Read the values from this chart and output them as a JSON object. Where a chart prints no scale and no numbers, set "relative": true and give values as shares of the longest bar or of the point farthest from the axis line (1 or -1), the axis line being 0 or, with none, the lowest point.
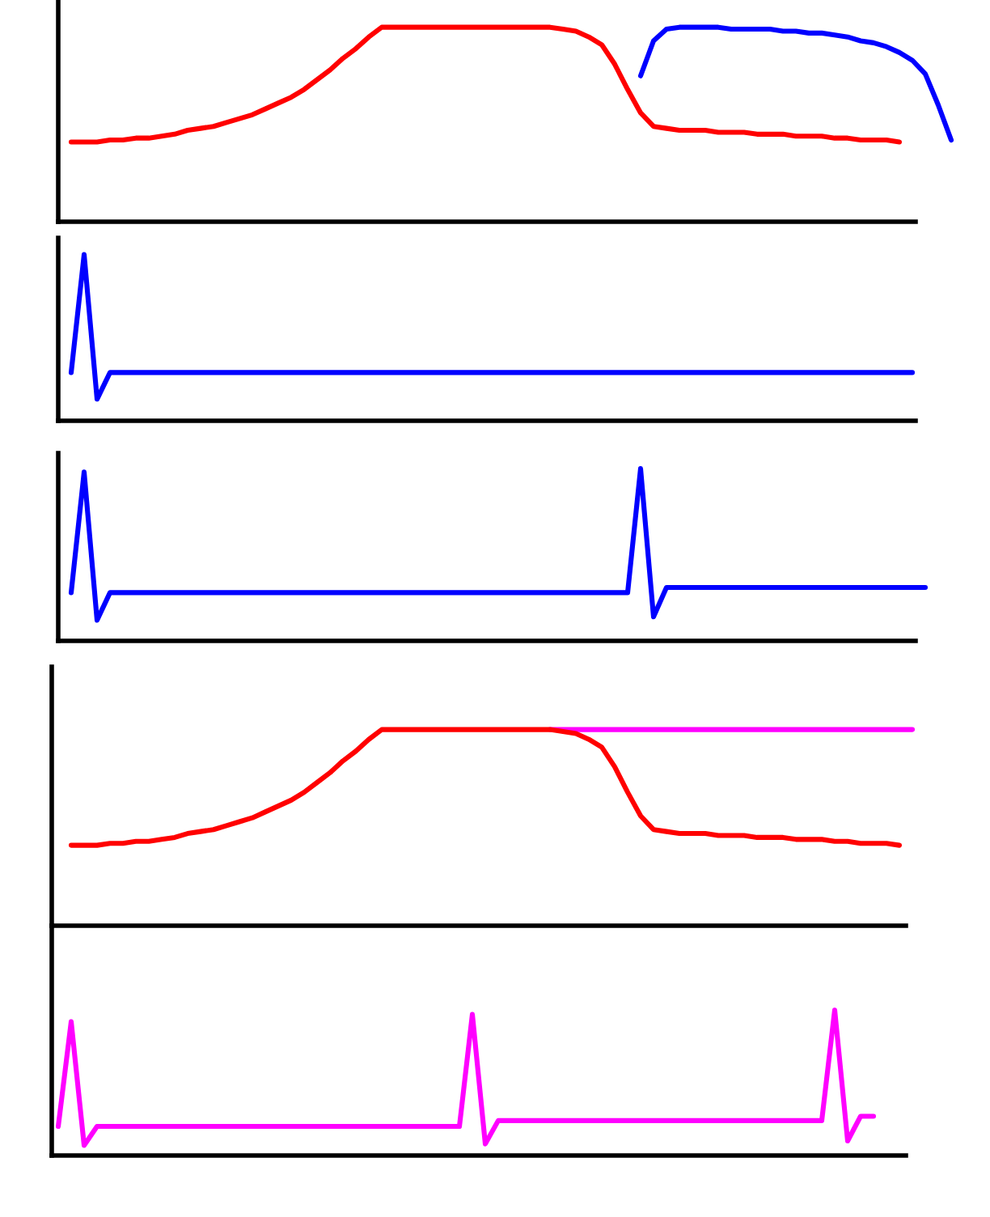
{
  "chart_data": [
    {
      "type": "line",
      "relative": true,
      "categories": [
        null,
        null,
        null,
        null,
        null,
        null,
        null,
        null,
        null,
        null,
        null,
        null,
        null,
        null,
        null,
        null,
        null,
        null,
        null,
        null,
        null,
        null,
        null,
        null,
        null,
        null,
        null,
        null,
        null,
        null,
        null,
        null,
        null,
        null,
        null,
        null,
        null,
        null,
        null,
        null,
        null,
        null,
        null,
        null,
        null,
        null,
        null,
        null,
        null,
        null,
        null,
        null,
        null,
        null,
        null,
        null,
        null,
        null,
        null,
        null,
        null,
        null,
        null,
        null,
        null,
        null,
        null,
        null,
        null,
        null
      ],
      "series": [
        {
          "color": "#ff0000",
          "values": [
            null,
            0.41,
            0.41,
            0.41,
            0.42,
            0.42,
            0.43,
            0.43,
            0.44,
            0.45,
            0.47,
            0.48,
            0.49,
            0.51,
            0.53,
            0.55,
            0.58,
            0.61,
            0.64,
            0.68,
            0.73,
            0.78,
            0.84,
            0.89,
            0.95,
            1.0,
            1.0,
            1.0,
            1.0,
            1.0,
            1.0,
            1.0,
            1.0,
            1.0,
            1.0,
            1.0,
            1.0,
            1.0,
            1.0,
            0.99,
            0.98,
            0.95,
            0.91,
            0.81,
            0.68,
            0.56,
            0.49,
            0.48,
            0.47,
            0.47,
            0.47,
            0.46,
            0.46,
            0.46,
            0.45,
            0.45,
            0.45,
            0.44,
            0.44,
            0.44,
            0.43,
            0.43,
            0.42,
            0.42,
            0.42,
            0.41,
            null,
            null,
            null,
            null
          ]
        },
        {
          "color": "#0000ff",
          "values": [
            null,
            null,
            null,
            null,
            null,
            null,
            null,
            null,
            null,
            null,
            null,
            null,
            null,
            null,
            null,
            null,
            null,
            null,
            null,
            null,
            null,
            null,
            null,
            null,
            null,
            null,
            null,
            null,
            null,
            null,
            null,
            null,
            null,
            null,
            null,
            null,
            null,
            null,
            null,
            null,
            null,
            null,
            null,
            null,
            null,
            0.75,
            0.93,
            0.99,
            1.0,
            1.0,
            1.0,
            1.0,
            0.99,
            0.99,
            0.99,
            0.99,
            0.98,
            0.98,
            0.97,
            0.97,
            0.96,
            0.95,
            0.93,
            0.92,
            0.9,
            0.87,
            0.83,
            0.76,
            0.6,
            0.42
          ]
        }
      ]
    },
    {
      "type": "line",
      "relative": true,
      "categories": [
        null,
        null,
        null,
        null,
        null,
        null,
        null,
        null,
        null,
        null,
        null,
        null,
        null,
        null,
        null,
        null,
        null,
        null,
        null,
        null,
        null,
        null,
        null,
        null,
        null,
        null,
        null,
        null,
        null,
        null,
        null,
        null,
        null,
        null,
        null,
        null,
        null,
        null,
        null,
        null,
        null,
        null,
        null,
        null,
        null,
        null,
        null,
        null,
        null,
        null,
        null,
        null,
        null,
        null,
        null,
        null,
        null,
        null,
        null,
        null,
        null,
        null,
        null,
        null,
        null,
        null,
        null,
        null,
        null,
        null
      ],
      "series": [
        {
          "color": "#0000ff",
          "values": [
            null,
            0.29,
            1.0,
            0.13,
            0.29,
            0.29,
            0.29,
            0.29,
            0.29,
            0.29,
            0.29,
            0.29,
            0.29,
            0.29,
            0.29,
            0.29,
            0.29,
            0.29,
            0.29,
            0.29,
            0.29,
            0.29,
            0.29,
            0.29,
            0.29,
            0.29,
            0.29,
            0.29,
            0.29,
            0.29,
            0.29,
            0.29,
            0.29,
            0.29,
            0.29,
            0.29,
            0.29,
            0.29,
            0.29,
            0.29,
            0.29,
            0.29,
            0.29,
            0.29,
            0.29,
            0.29,
            0.29,
            0.29,
            0.29,
            0.29,
            0.29,
            0.29,
            0.29,
            0.29,
            0.29,
            0.29,
            0.29,
            0.29,
            0.29,
            0.29,
            0.29,
            0.29,
            0.29,
            0.29,
            0.29,
            0.29,
            0.29,
            null,
            null,
            null
          ]
        }
      ]
    },
    {
      "type": "line",
      "relative": true,
      "categories": [
        null,
        null,
        null,
        null,
        null,
        null,
        null,
        null,
        null,
        null,
        null,
        null,
        null,
        null,
        null,
        null,
        null,
        null,
        null,
        null,
        null,
        null,
        null,
        null,
        null,
        null,
        null,
        null,
        null,
        null,
        null,
        null,
        null,
        null,
        null,
        null,
        null,
        null,
        null,
        null,
        null,
        null,
        null,
        null,
        null,
        null,
        null,
        null,
        null,
        null,
        null,
        null,
        null,
        null,
        null,
        null,
        null,
        null,
        null,
        null,
        null,
        null,
        null,
        null,
        null,
        null,
        null,
        null,
        null,
        null
      ],
      "series": [
        {
          "color": "#0000ff",
          "values": [
            null,
            0.28,
            0.98,
            0.12,
            0.28,
            0.28,
            0.28,
            0.28,
            0.28,
            0.28,
            0.28,
            0.28,
            0.28,
            0.28,
            0.28,
            0.28,
            0.28,
            0.28,
            0.28,
            0.28,
            0.28,
            0.28,
            0.28,
            0.28,
            0.28,
            0.28,
            0.28,
            0.28,
            0.28,
            0.28,
            0.28,
            0.28,
            0.28,
            0.28,
            0.28,
            0.28,
            0.28,
            0.28,
            0.28,
            0.28,
            0.28,
            0.28,
            0.28,
            0.28,
            0.28,
            1.0,
            0.14,
            0.31,
            0.31,
            0.31,
            0.31,
            0.31,
            0.31,
            0.31,
            0.31,
            0.31,
            0.31,
            0.31,
            0.31,
            0.31,
            0.31,
            0.31,
            0.31,
            0.31,
            0.31,
            0.31,
            0.31,
            0.31,
            null,
            null
          ]
        }
      ]
    },
    {
      "type": "line",
      "relative": true,
      "categories": [
        null,
        null,
        null,
        null,
        null,
        null,
        null,
        null,
        null,
        null,
        null,
        null,
        null,
        null,
        null,
        null,
        null,
        null,
        null,
        null,
        null,
        null,
        null,
        null,
        null,
        null,
        null,
        null,
        null,
        null,
        null,
        null,
        null,
        null,
        null,
        null,
        null,
        null,
        null,
        null,
        null,
        null,
        null,
        null,
        null,
        null,
        null,
        null,
        null,
        null,
        null,
        null,
        null,
        null,
        null,
        null,
        null,
        null,
        null,
        null,
        null,
        null,
        null,
        null,
        null,
        null,
        null,
        null,
        null,
        null
      ],
      "series": [
        {
          "color": "#ff00ff",
          "values": [
            null,
            null,
            null,
            null,
            null,
            null,
            null,
            null,
            null,
            null,
            null,
            null,
            null,
            null,
            null,
            null,
            null,
            null,
            null,
            null,
            null,
            null,
            null,
            null,
            null,
            null,
            null,
            null,
            null,
            null,
            null,
            null,
            null,
            null,
            null,
            null,
            null,
            null,
            1.0,
            1.0,
            1.0,
            1.0,
            1.0,
            1.0,
            1.0,
            1.0,
            1.0,
            1.0,
            1.0,
            1.0,
            1.0,
            1.0,
            1.0,
            1.0,
            1.0,
            1.0,
            1.0,
            1.0,
            1.0,
            1.0,
            1.0,
            1.0,
            1.0,
            1.0,
            1.0,
            1.0,
            1.0,
            null,
            null,
            null
          ]
        },
        {
          "color": "#ff0000",
          "values": [
            null,
            0.41,
            0.41,
            0.41,
            0.42,
            0.42,
            0.43,
            0.43,
            0.44,
            0.45,
            0.47,
            0.48,
            0.49,
            0.51,
            0.53,
            0.55,
            0.58,
            0.61,
            0.64,
            0.68,
            0.73,
            0.78,
            0.84,
            0.89,
            0.95,
            1.0,
            1.0,
            1.0,
            1.0,
            1.0,
            1.0,
            1.0,
            1.0,
            1.0,
            1.0,
            1.0,
            1.0,
            1.0,
            1.0,
            0.99,
            0.98,
            0.95,
            0.91,
            0.81,
            0.68,
            0.56,
            0.49,
            0.48,
            0.47,
            0.47,
            0.47,
            0.46,
            0.46,
            0.46,
            0.45,
            0.45,
            0.45,
            0.44,
            0.44,
            0.44,
            0.43,
            0.43,
            0.42,
            0.42,
            0.42,
            0.41,
            null,
            null,
            null,
            null
          ]
        }
      ]
    },
    {
      "type": "line",
      "relative": true,
      "categories": [
        null,
        null,
        null,
        null,
        null,
        null,
        null,
        null,
        null,
        null,
        null,
        null,
        null,
        null,
        null,
        null,
        null,
        null,
        null,
        null,
        null,
        null,
        null,
        null,
        null,
        null,
        null,
        null,
        null,
        null,
        null,
        null,
        null,
        null,
        null,
        null,
        null,
        null,
        null,
        null,
        null,
        null,
        null,
        null,
        null,
        null,
        null,
        null,
        null,
        null,
        null,
        null,
        null,
        null,
        null,
        null,
        null,
        null,
        null,
        null,
        null,
        null,
        null,
        null,
        null,
        null,
        null,
        null,
        null,
        null
      ],
      "series": [
        {
          "color": "#ff00ff",
          "values": [
            0.2,
            0.92,
            0.07,
            0.2,
            0.2,
            0.2,
            0.2,
            0.2,
            0.2,
            0.2,
            0.2,
            0.2,
            0.2,
            0.2,
            0.2,
            0.2,
            0.2,
            0.2,
            0.2,
            0.2,
            0.2,
            0.2,
            0.2,
            0.2,
            0.2,
            0.2,
            0.2,
            0.2,
            0.2,
            0.2,
            0.2,
            0.2,
            0.97,
            0.08,
            0.24,
            0.24,
            0.24,
            0.24,
            0.24,
            0.24,
            0.24,
            0.24,
            0.24,
            0.24,
            0.24,
            0.24,
            0.24,
            0.24,
            0.24,
            0.24,
            0.24,
            0.24,
            0.24,
            0.24,
            0.24,
            0.24,
            0.24,
            0.24,
            0.24,
            0.24,
            1.0,
            0.1,
            0.27,
            0.27,
            null,
            null,
            null,
            null,
            null,
            null
          ]
        }
      ]
    }
  ]
}
